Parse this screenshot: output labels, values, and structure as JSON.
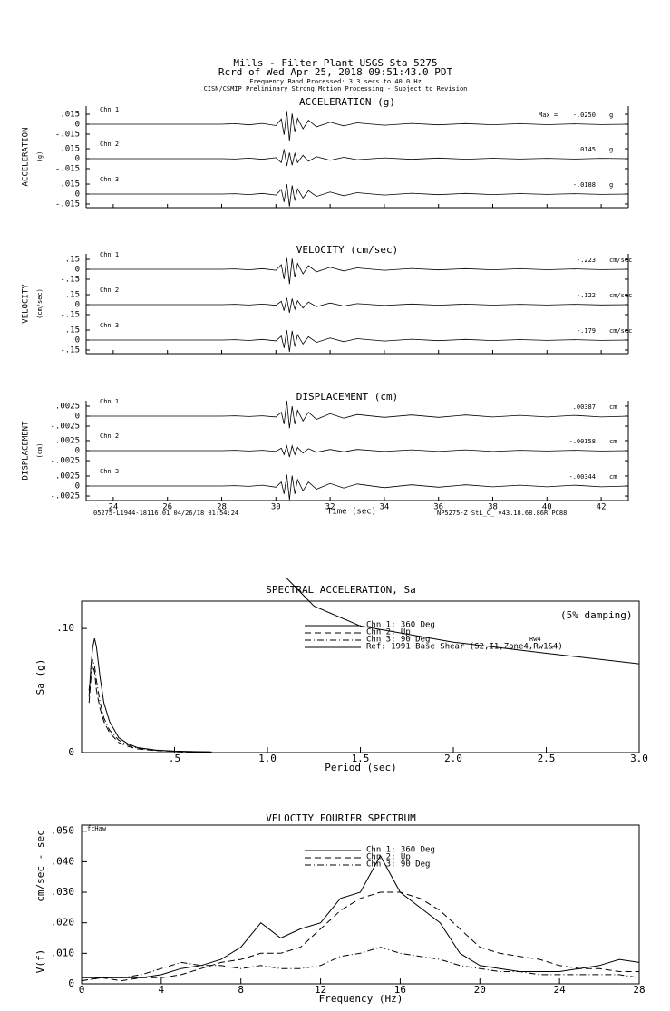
{
  "header": {
    "title": "Mills - Filter Plant    USGS Sta  5275",
    "record": "Rcrd of Wed Apr 25, 2018 09:51:43.0 PDT",
    "band": "Frequency Band Processed: 3.3 secs to 40.0 Hz",
    "note": "CISN/CSMIP Preliminary Strong Motion Processing - Subject to Revision"
  },
  "chart_data": [
    {
      "type": "line",
      "title": "ACCELERATION (g)",
      "y_label": "ACCELERATION",
      "y_unit": "(g)",
      "unit": "g",
      "max_prefix": "Max =",
      "xlim": [
        23,
        43
      ],
      "ylim": [
        -0.026,
        0.026
      ],
      "yticks": [
        {
          "value": 0.015,
          "label": ".015"
        },
        0,
        {
          "value": -0.015,
          "label": "-.015"
        }
      ],
      "x": [
        23,
        28,
        28.5,
        29,
        29.5,
        30,
        30.2,
        30.3,
        30.4,
        30.5,
        30.6,
        30.7,
        30.8,
        31,
        31.2,
        31.5,
        32,
        32.5,
        33,
        34,
        35,
        36,
        37,
        38,
        39,
        40,
        41,
        42,
        43
      ],
      "channels": [
        {
          "name": "Chn 1",
          "max": -0.025,
          "max_label": "-.0250",
          "values": [
            0,
            0,
            0.0008,
            -0.001,
            0.0012,
            -0.002,
            0.008,
            -0.016,
            0.02,
            -0.025,
            0.016,
            -0.012,
            0.009,
            -0.007,
            0.006,
            -0.004,
            0.003,
            -0.0025,
            0.002,
            -0.0015,
            0.0012,
            -0.001,
            0.001,
            -0.0008,
            0.0008,
            -0.0007,
            0.0006,
            -0.0006,
            0
          ]
        },
        {
          "name": "Chn 2",
          "max": 0.0145,
          "max_label": ".0145",
          "values": [
            0,
            0,
            -0.0006,
            0.0008,
            -0.001,
            0.0015,
            -0.006,
            0.0145,
            -0.011,
            0.009,
            -0.01,
            0.008,
            -0.006,
            0.005,
            -0.004,
            0.003,
            -0.0025,
            0.002,
            -0.0015,
            0.0012,
            -0.001,
            0.0009,
            -0.0008,
            0.0007,
            -0.0006,
            0.0006,
            -0.0005,
            0.0005,
            0
          ]
        },
        {
          "name": "Chn 3",
          "max": -0.0188,
          "max_label": "-.0188",
          "values": [
            0,
            0,
            0.0006,
            -0.0008,
            0.001,
            -0.0015,
            0.007,
            -0.012,
            0.015,
            -0.0188,
            0.013,
            -0.01,
            0.008,
            -0.006,
            0.005,
            -0.0035,
            0.003,
            -0.0025,
            0.002,
            -0.0015,
            0.0012,
            -0.001,
            0.0009,
            -0.0008,
            0.0007,
            -0.0006,
            0.0006,
            -0.0005,
            0
          ]
        }
      ]
    },
    {
      "type": "line",
      "title": "VELOCITY (cm/sec)",
      "y_label": "VELOCITY",
      "y_unit": "(cm/sec)",
      "unit": "cm/sec",
      "xlim": [
        23,
        43
      ],
      "ylim": [
        -0.26,
        0.26
      ],
      "yticks": [
        {
          "value": 0.15,
          "label": ".15"
        },
        0,
        {
          "value": -0.15,
          "label": "-.15"
        }
      ],
      "x": [
        23,
        28,
        28.5,
        29,
        29.5,
        30,
        30.2,
        30.3,
        30.4,
        30.5,
        30.6,
        30.7,
        30.8,
        31,
        31.2,
        31.5,
        32,
        32.5,
        33,
        34,
        35,
        36,
        37,
        38,
        39,
        40,
        41,
        42,
        43
      ],
      "channels": [
        {
          "name": "Chn 1",
          "max": -0.223,
          "max_label": "-.223",
          "values": [
            0,
            0,
            0.006,
            -0.008,
            0.01,
            -0.015,
            0.07,
            -0.15,
            0.18,
            -0.223,
            0.16,
            -0.12,
            0.09,
            -0.07,
            0.055,
            -0.04,
            0.03,
            -0.025,
            0.02,
            -0.015,
            0.012,
            -0.01,
            0.01,
            -0.008,
            0.008,
            -0.007,
            0.006,
            -0.006,
            0
          ]
        },
        {
          "name": "Chn 2",
          "max": -0.122,
          "max_label": "-.122",
          "values": [
            0,
            0,
            0.005,
            -0.006,
            0.008,
            -0.01,
            0.05,
            -0.09,
            0.1,
            -0.122,
            0.09,
            -0.07,
            0.06,
            -0.05,
            0.04,
            -0.03,
            0.025,
            -0.02,
            0.015,
            -0.012,
            0.01,
            -0.008,
            0.008,
            -0.007,
            0.006,
            -0.005,
            0.005,
            -0.004,
            0
          ]
        },
        {
          "name": "Chn 3",
          "max": -0.179,
          "max_label": "-.179",
          "values": [
            0,
            0,
            0.005,
            -0.007,
            0.009,
            -0.012,
            0.06,
            -0.12,
            0.15,
            -0.179,
            0.14,
            -0.1,
            0.08,
            -0.06,
            0.05,
            -0.035,
            0.03,
            -0.025,
            0.02,
            -0.015,
            0.012,
            -0.01,
            0.009,
            -0.008,
            0.007,
            -0.006,
            0.006,
            -0.005,
            0
          ]
        }
      ]
    },
    {
      "type": "line",
      "title": "DISPLACEMENT (cm)",
      "y_label": "DISPLACEMENT",
      "y_unit": "(cm)",
      "unit": "cm",
      "x_label": "Time (sec)",
      "footer_left": "05275-L1944-18116.01 04/26/18 01:54:24",
      "footer_right": "NP5275-Z  StL_C_  v43.18.68.86R PC88",
      "xlim": [
        23,
        43
      ],
      "xticks": [
        24,
        26,
        28,
        30,
        32,
        34,
        36,
        38,
        40,
        42
      ],
      "ylim": [
        -0.0043,
        0.0043
      ],
      "yticks": [
        {
          "value": 0.0025,
          "label": ".0025"
        },
        0,
        {
          "value": -0.0025,
          "label": "-.0025"
        }
      ],
      "x": [
        23,
        28,
        28.5,
        29,
        29.5,
        30,
        30.2,
        30.3,
        30.4,
        30.5,
        30.6,
        30.7,
        30.8,
        31,
        31.2,
        31.5,
        32,
        32.5,
        33,
        34,
        35,
        36,
        37,
        38,
        39,
        40,
        41,
        42,
        43
      ],
      "channels": [
        {
          "name": "Chn 1",
          "max": 0.00387,
          "max_label": ".00387",
          "values": [
            0,
            0,
            0.0001,
            -0.0001,
            0.0001,
            -0.0002,
            0.001,
            -0.002,
            0.00387,
            -0.003,
            0.0025,
            -0.002,
            0.0015,
            -0.0012,
            0.001,
            -0.0008,
            0.0006,
            -0.0005,
            0.0004,
            -0.0003,
            0.0003,
            -0.0003,
            0.0003,
            -0.0002,
            0.0002,
            -0.0002,
            0.0002,
            -0.0002,
            0
          ]
        },
        {
          "name": "Chn 2",
          "max": -0.00158,
          "max_label": "-.00158",
          "values": [
            0,
            0,
            0.0001,
            -0.0001,
            0.0001,
            -0.0002,
            0.0006,
            -0.001,
            0.0012,
            -0.00158,
            0.0012,
            -0.001,
            0.0008,
            -0.0006,
            0.0005,
            -0.0004,
            0.0003,
            -0.0003,
            0.0003,
            -0.0002,
            0.0002,
            -0.0002,
            0.0002,
            -0.0002,
            0.0001,
            -0.0001,
            0.0001,
            -0.0001,
            0
          ]
        },
        {
          "name": "Chn 3",
          "max": -0.00344,
          "max_label": "-.00344",
          "values": [
            0,
            0,
            0.0001,
            -0.0001,
            0.0002,
            -0.0003,
            0.001,
            -0.002,
            0.0028,
            -0.00344,
            0.0026,
            -0.002,
            0.0016,
            -0.0012,
            0.001,
            -0.0008,
            0.0006,
            -0.0005,
            0.0005,
            -0.0004,
            0.0003,
            -0.0003,
            0.0003,
            -0.0002,
            0.0002,
            -0.0002,
            0.0002,
            -0.0002,
            0
          ]
        }
      ]
    },
    {
      "type": "line",
      "title": "SPECTRAL ACCELERATION, Sa",
      "y_label": "Sa (g)",
      "x_label": "Period (sec)",
      "annotations": [
        "(5% damping)",
        "Rw4"
      ],
      "xlim": [
        0,
        3
      ],
      "ylim": [
        0,
        0.122
      ],
      "xticks": [
        {
          "value": 0.5,
          "label": ".5"
        },
        {
          "value": 1,
          "label": "1.0"
        },
        {
          "value": 1.5,
          "label": "1.5"
        },
        {
          "value": 2,
          "label": "2.0"
        },
        {
          "value": 2.5,
          "label": "2.5"
        },
        {
          "value": 3,
          "label": "3.0"
        }
      ],
      "yticks": [
        0,
        {
          "value": 0.1,
          "label": ".10"
        }
      ],
      "series": [
        {
          "name": "Chn 1: 360 Deg",
          "style": "solid",
          "color": "#000000",
          "x": [
            0.04,
            0.05,
            0.06,
            0.07,
            0.08,
            0.1,
            0.12,
            0.15,
            0.2,
            0.25,
            0.3,
            0.4,
            0.5,
            0.6,
            0.7
          ],
          "values": [
            0.045,
            0.07,
            0.085,
            0.092,
            0.085,
            0.06,
            0.04,
            0.025,
            0.012,
            0.007,
            0.004,
            0.002,
            0.0012,
            0.0008,
            0.0005
          ]
        },
        {
          "name": "Chn 2: Up",
          "style": "dashed",
          "color": "#000000",
          "x": [
            0.04,
            0.05,
            0.06,
            0.07,
            0.08,
            0.1,
            0.12,
            0.15,
            0.2,
            0.25,
            0.3,
            0.4,
            0.5,
            0.6,
            0.7
          ],
          "values": [
            0.04,
            0.06,
            0.07,
            0.065,
            0.05,
            0.035,
            0.025,
            0.016,
            0.008,
            0.005,
            0.003,
            0.0015,
            0.001,
            0.0006,
            0.0004
          ]
        },
        {
          "name": "Chn 3: 90 Deg",
          "style": "dashdot",
          "color": "#000000",
          "x": [
            0.04,
            0.05,
            0.06,
            0.07,
            0.08,
            0.1,
            0.12,
            0.15,
            0.2,
            0.25,
            0.3,
            0.4,
            0.5,
            0.6,
            0.7
          ],
          "values": [
            0.05,
            0.065,
            0.075,
            0.07,
            0.058,
            0.04,
            0.028,
            0.018,
            0.01,
            0.006,
            0.0035,
            0.0018,
            0.001,
            0.0007,
            0.0004
          ]
        },
        {
          "name": "Ref: 1991 Base Shear (S2,I1,Zone4,Rw1&4)",
          "style": "solid",
          "color": "#000000",
          "x": [
            1.1,
            1.25,
            1.5,
            2.0,
            2.5,
            3.0
          ],
          "values": [
            0.141,
            0.118,
            0.102,
            0.089,
            0.08,
            0.0715
          ]
        }
      ]
    },
    {
      "type": "line",
      "title": "VELOCITY FOURIER SPECTRUM",
      "y_label": "V(f)",
      "y_unit": "cm/sec - sec",
      "x_label": "Frequency (Hz)",
      "annotations": [
        "fcHaw"
      ],
      "xlim": [
        0,
        28
      ],
      "ylim": [
        0,
        0.052
      ],
      "xticks": [
        0,
        4,
        8,
        12,
        16,
        20,
        24,
        28
      ],
      "yticks": [
        0,
        {
          "value": 0.01,
          "label": ".010"
        },
        {
          "value": 0.02,
          "label": ".020"
        },
        {
          "value": 0.03,
          "label": ".030"
        },
        {
          "value": 0.04,
          "label": ".040"
        },
        {
          "value": 0.05,
          "label": ".050"
        }
      ],
      "series": [
        {
          "name": "Chn 1: 360 Deg",
          "style": "solid",
          "color": "#000000",
          "x": [
            0,
            1,
            2,
            3,
            4,
            5,
            6,
            7,
            8,
            9,
            10,
            11,
            12,
            13,
            14,
            15,
            16,
            17,
            18,
            19,
            20,
            21,
            22,
            23,
            24,
            25,
            26,
            27,
            28
          ],
          "values": [
            0.002,
            0.002,
            0.002,
            0.002,
            0.003,
            0.005,
            0.006,
            0.008,
            0.012,
            0.02,
            0.015,
            0.018,
            0.02,
            0.028,
            0.03,
            0.042,
            0.03,
            0.025,
            0.02,
            0.01,
            0.006,
            0.005,
            0.004,
            0.004,
            0.004,
            0.005,
            0.006,
            0.008,
            0.007
          ]
        },
        {
          "name": "Chn 2: Up",
          "style": "dashed",
          "color": "#000000",
          "x": [
            0,
            1,
            2,
            3,
            4,
            5,
            6,
            7,
            8,
            9,
            10,
            11,
            12,
            13,
            14,
            15,
            16,
            17,
            18,
            19,
            20,
            21,
            22,
            23,
            24,
            25,
            26,
            27,
            28
          ],
          "values": [
            0.001,
            0.002,
            0.001,
            0.002,
            0.002,
            0.003,
            0.005,
            0.007,
            0.008,
            0.01,
            0.01,
            0.012,
            0.018,
            0.024,
            0.028,
            0.03,
            0.03,
            0.028,
            0.024,
            0.018,
            0.012,
            0.01,
            0.009,
            0.008,
            0.006,
            0.005,
            0.005,
            0.004,
            0.004
          ]
        },
        {
          "name": "Chn 3: 90 Deg",
          "style": "dashdot",
          "color": "#000000",
          "x": [
            0,
            1,
            2,
            3,
            4,
            5,
            6,
            7,
            8,
            9,
            10,
            11,
            12,
            13,
            14,
            15,
            16,
            17,
            18,
            19,
            20,
            21,
            22,
            23,
            24,
            25,
            26,
            27,
            28
          ],
          "values": [
            0.001,
            0.002,
            0.002,
            0.003,
            0.005,
            0.007,
            0.006,
            0.006,
            0.005,
            0.006,
            0.005,
            0.005,
            0.006,
            0.009,
            0.01,
            0.012,
            0.01,
            0.009,
            0.008,
            0.006,
            0.005,
            0.004,
            0.004,
            0.003,
            0.003,
            0.003,
            0.003,
            0.003,
            0.002
          ]
        }
      ]
    }
  ]
}
